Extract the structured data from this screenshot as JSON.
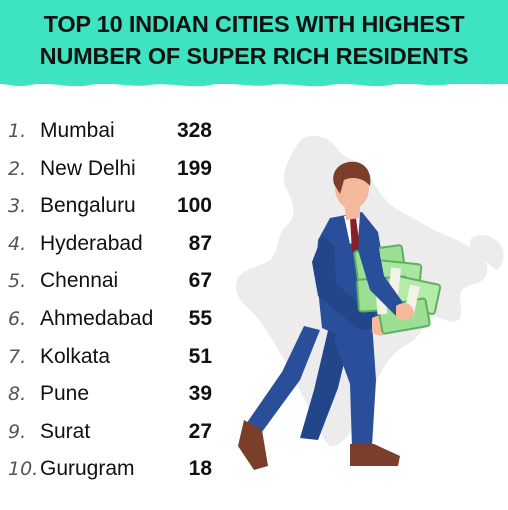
{
  "title_line1": "TOP 10 INDIAN CITIES WITH HIGHEST",
  "title_line2": "NUMBER OF SUPER RICH RESIDENTS",
  "colors": {
    "header": "#3ee3c2",
    "map": "#ececec",
    "suit": "#2a4f9a",
    "money": "#9adf93"
  },
  "chart_data": {
    "type": "table",
    "title": "TOP 10 INDIAN CITIES WITH HIGHEST NUMBER OF SUPER RICH RESIDENTS",
    "columns": [
      "rank",
      "city",
      "value"
    ],
    "rows": [
      {
        "rank": "1.",
        "city": "Mumbai",
        "value": 328
      },
      {
        "rank": "2.",
        "city": "New Delhi",
        "value": 199
      },
      {
        "rank": "3.",
        "city": "Bengaluru",
        "value": 100
      },
      {
        "rank": "4.",
        "city": "Hyderabad",
        "value": 87
      },
      {
        "rank": "5.",
        "city": "Chennai",
        "value": 67
      },
      {
        "rank": "6.",
        "city": "Ahmedabad",
        "value": 55
      },
      {
        "rank": "7.",
        "city": "Kolkata",
        "value": 51
      },
      {
        "rank": "8.",
        "city": "Pune",
        "value": 39
      },
      {
        "rank": "9.",
        "city": "Surat",
        "value": 27
      },
      {
        "rank": "10.",
        "city": "Gurugram",
        "value": 18
      }
    ]
  }
}
